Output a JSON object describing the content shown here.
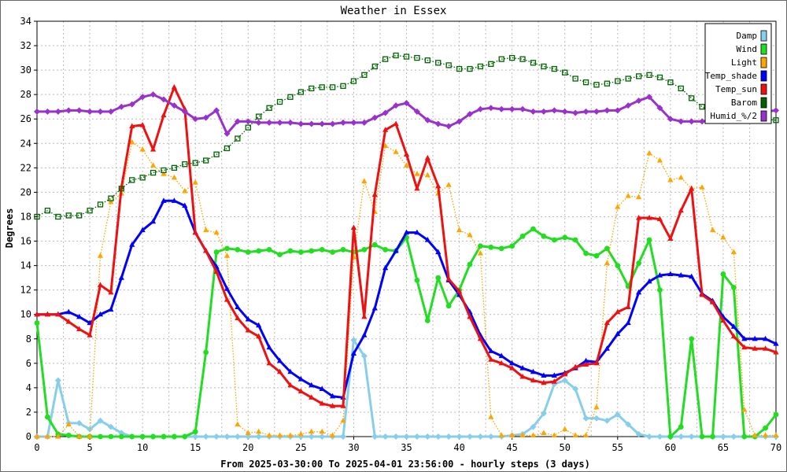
{
  "chart_data": {
    "type": "line",
    "title": "Weather in Essex",
    "ylabel": "Degrees",
    "xlabel": "From 2025-03-30:00 To 2025-04-01 23:56:00 - hourly steps (3 days)",
    "xlim": [
      0,
      70
    ],
    "ylim": [
      0,
      34
    ],
    "x_ticks": [
      0,
      5,
      10,
      15,
      20,
      25,
      30,
      35,
      40,
      45,
      50,
      55,
      60,
      65,
      70
    ],
    "y_ticks": [
      0,
      2,
      4,
      6,
      8,
      10,
      12,
      14,
      16,
      18,
      20,
      22,
      24,
      26,
      28,
      30,
      32,
      34
    ],
    "grid": true,
    "legend_position": "top-right",
    "x": [
      0,
      1,
      2,
      3,
      4,
      5,
      6,
      7,
      8,
      9,
      10,
      11,
      12,
      13,
      14,
      15,
      16,
      17,
      18,
      19,
      20,
      21,
      22,
      23,
      24,
      25,
      26,
      27,
      28,
      29,
      30,
      31,
      32,
      33,
      34,
      35,
      36,
      37,
      38,
      39,
      40,
      41,
      42,
      43,
      44,
      45,
      46,
      47,
      48,
      49,
      50,
      51,
      52,
      53,
      54,
      55,
      56,
      57,
      58,
      59,
      60,
      61,
      62,
      63,
      64,
      65,
      66,
      67,
      68,
      69,
      70
    ],
    "series": [
      {
        "name": "Damp",
        "color": "#87ceeb",
        "marker": "diamond",
        "dotted": false,
        "values": [
          0,
          0,
          4.6,
          1.1,
          1.1,
          0.6,
          1.3,
          0.8,
          0.3,
          0,
          0,
          0,
          0,
          0,
          0,
          0,
          0,
          0,
          0,
          0,
          0,
          0,
          0,
          0,
          0,
          0,
          0,
          0,
          0,
          0,
          7.9,
          6.6,
          0,
          0,
          0,
          0,
          0,
          0,
          0,
          0,
          0,
          0,
          0,
          0,
          0,
          0.1,
          0.2,
          0.8,
          1.9,
          4.3,
          4.6,
          3.9,
          1.5,
          1.5,
          1.3,
          1.8,
          1,
          0.2,
          0,
          0,
          0,
          0,
          0,
          0,
          0,
          0,
          0,
          0,
          0,
          0,
          0
        ]
      },
      {
        "name": "Wind",
        "color": "#22dd22",
        "marker": "circle",
        "dotted": false,
        "values": [
          9.3,
          1.6,
          0.2,
          0.1,
          0,
          0,
          0,
          0,
          0,
          0,
          0,
          0,
          0,
          0,
          0,
          0.4,
          6.9,
          15.1,
          15.4,
          15.3,
          15.1,
          15.2,
          15.3,
          14.9,
          15.2,
          15.1,
          15.2,
          15.3,
          15.1,
          15.3,
          15.1,
          15.3,
          15.7,
          15.3,
          15.2,
          16.3,
          12.8,
          9.5,
          13,
          10.7,
          12,
          14.1,
          15.6,
          15.5,
          15.4,
          15.6,
          16.4,
          17,
          16.4,
          16.1,
          16.3,
          16.1,
          15,
          14.8,
          15.4,
          14,
          12.3,
          14.2,
          16.1,
          12,
          0,
          0.8,
          8,
          0,
          0,
          13.3,
          12.2,
          0,
          0,
          0.7,
          1.8
        ]
      },
      {
        "name": "Light",
        "color": "#ffa500",
        "marker": "triangle",
        "dotted": true,
        "values": [
          0,
          0,
          0,
          1,
          0,
          0,
          14.8,
          19.2,
          19.9,
          24.1,
          23.5,
          22.2,
          21.5,
          21.2,
          20.1,
          20.8,
          16.9,
          16.7,
          14.8,
          1,
          0.3,
          0.4,
          0.1,
          0.1,
          0.1,
          0.2,
          0.4,
          0.4,
          0.1,
          1.3,
          14.7,
          20.9,
          18.4,
          23.8,
          23.3,
          22.2,
          21.5,
          21.4,
          19.9,
          20.6,
          16.9,
          16.5,
          15,
          1.6,
          0.1,
          0.1,
          0.1,
          0.1,
          0.3,
          0.1,
          0.6,
          0.1,
          0.1,
          2.4,
          14.2,
          18.8,
          19.7,
          19.6,
          23.2,
          22.6,
          21,
          21.2,
          20.3,
          20.4,
          16.9,
          16.3,
          15.1,
          2.2,
          0.1,
          0.1,
          0.1
        ]
      },
      {
        "name": "Temp_shade",
        "color": "#0000ff",
        "marker": "triangle",
        "dotted": false,
        "values": [
          10,
          10,
          10,
          10.2,
          9.8,
          9.3,
          10,
          10.4,
          13,
          15.7,
          16.9,
          17.6,
          19.3,
          19.3,
          18.9,
          16.7,
          15.2,
          13.9,
          12.1,
          10.6,
          9.6,
          9.1,
          7.3,
          6.2,
          5.3,
          4.7,
          4.2,
          3.9,
          3.3,
          3.2,
          6.8,
          8.3,
          10.5,
          13.8,
          15.2,
          16.7,
          16.7,
          16.1,
          15.1,
          12.8,
          11.6,
          10.2,
          8.3,
          7,
          6.6,
          6,
          5.6,
          5.3,
          5,
          5,
          5.2,
          5.6,
          6.2,
          6.1,
          7.2,
          8.4,
          9.3,
          11.8,
          12.7,
          13.2,
          13.3,
          13.2,
          13.1,
          11.7,
          11.1,
          9.8,
          9,
          8,
          8,
          8,
          7.6
        ]
      },
      {
        "name": "Temp_sun",
        "color": "#ee1111",
        "marker": "triangle",
        "dotted": false,
        "values": [
          10,
          10,
          10,
          9.4,
          8.8,
          8.3,
          12.4,
          11.8,
          20.4,
          25.4,
          25.5,
          23.5,
          26.3,
          28.6,
          26.8,
          16.7,
          15.2,
          13.5,
          11.2,
          9.7,
          8.7,
          8.2,
          6,
          5.3,
          4.2,
          3.7,
          3.2,
          2.7,
          2.5,
          2.5,
          17.1,
          9.8,
          19.8,
          25.1,
          25.6,
          23.1,
          20.3,
          22.8,
          20.5,
          12.9,
          11.9,
          9.8,
          8,
          6.3,
          6,
          5.6,
          4.9,
          4.6,
          4.4,
          4.5,
          5.1,
          5.7,
          5.9,
          6,
          9.3,
          10.2,
          10.6,
          17.9,
          17.9,
          17.8,
          16.2,
          18.5,
          20.3,
          11.6,
          11,
          9.5,
          8.2,
          7.3,
          7.2,
          7.2,
          6.9
        ]
      },
      {
        "name": "Barom",
        "color": "#006400",
        "marker": "square",
        "dotted": true,
        "values": [
          18,
          18.5,
          18,
          18.1,
          18.1,
          18.5,
          19,
          19.5,
          20.3,
          21,
          21.2,
          21.6,
          21.8,
          22,
          22.3,
          22.4,
          22.6,
          23.1,
          23.6,
          24.4,
          25.3,
          26.2,
          26.9,
          27.4,
          27.8,
          28.2,
          28.5,
          28.6,
          28.6,
          28.7,
          29.1,
          29.6,
          30.3,
          30.9,
          31.2,
          31.1,
          31,
          30.8,
          30.6,
          30.4,
          30.1,
          30.1,
          30.3,
          30.5,
          30.9,
          31,
          30.9,
          30.6,
          30.3,
          30.1,
          29.8,
          29.3,
          29,
          28.8,
          28.9,
          29.1,
          29.3,
          29.5,
          29.6,
          29.4,
          29,
          28.5,
          27.7,
          27,
          26.5,
          26,
          26,
          26,
          26,
          26,
          25.9
        ]
      },
      {
        "name": "Humid_%/2",
        "color": "#9932cc",
        "marker": "diamond",
        "dotted": false,
        "values": [
          26.6,
          26.6,
          26.6,
          26.7,
          26.7,
          26.6,
          26.6,
          26.6,
          27,
          27.2,
          27.8,
          28,
          27.6,
          27.1,
          26.6,
          26,
          26.1,
          26.7,
          24.8,
          25.8,
          25.8,
          25.7,
          25.7,
          25.7,
          25.7,
          25.6,
          25.6,
          25.6,
          25.6,
          25.7,
          25.7,
          25.7,
          26.1,
          26.5,
          27.1,
          27.3,
          26.6,
          25.9,
          25.6,
          25.4,
          25.8,
          26.4,
          26.8,
          26.9,
          26.8,
          26.8,
          26.8,
          26.6,
          26.6,
          26.7,
          26.6,
          26.5,
          26.6,
          26.6,
          26.7,
          26.7,
          27.1,
          27.5,
          27.8,
          26.9,
          26,
          25.8,
          25.8,
          25.8,
          25.9,
          26.2,
          26.4,
          26.4,
          26.5,
          26.6,
          26.7
        ]
      }
    ]
  }
}
